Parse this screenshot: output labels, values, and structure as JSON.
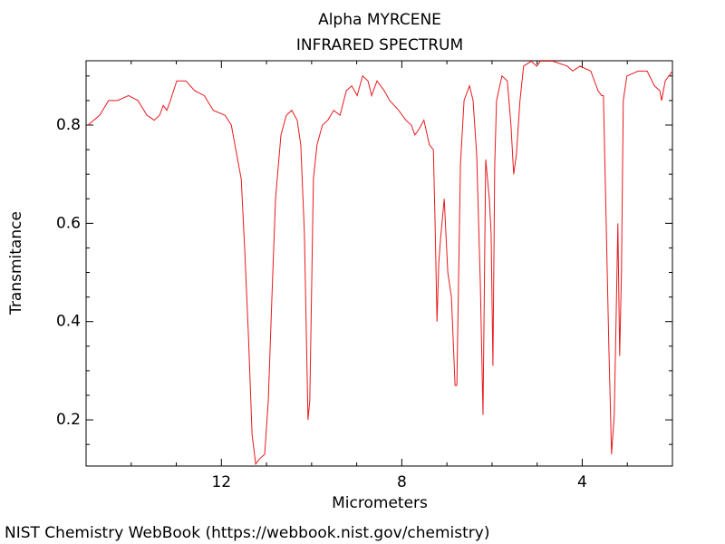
{
  "chart_data": {
    "type": "line",
    "title": "Alpha MYRCENE",
    "subtitle": "INFRARED SPECTRUM",
    "x_label": "Micrometers",
    "y_label": "Transmitance",
    "footer": "NIST Chemistry WebBook (https://webbook.nist.gov/chemistry)",
    "xlim": [
      15,
      2
    ],
    "ylim": [
      0.106,
      0.931
    ],
    "xticks": [
      12,
      8,
      4
    ],
    "yticks": [
      0.2,
      0.4,
      0.6,
      0.8
    ],
    "xminorticks": [
      14,
      13,
      11,
      10,
      9,
      7,
      6,
      5,
      3
    ],
    "yminorticks": [
      0.15,
      0.25,
      0.3,
      0.35,
      0.45,
      0.5,
      0.55,
      0.65,
      0.7,
      0.75,
      0.85,
      0.9
    ],
    "grid": false,
    "x": [
      14.96,
      14.7,
      14.5,
      14.3,
      14.06,
      13.85,
      13.65,
      13.49,
      13.37,
      13.29,
      13.21,
      13.13,
      12.99,
      12.79,
      12.59,
      12.38,
      12.18,
      11.92,
      11.78,
      11.64,
      11.56,
      11.48,
      11.4,
      11.32,
      11.24,
      11.16,
      11.04,
      10.96,
      10.88,
      10.8,
      10.68,
      10.56,
      10.44,
      10.32,
      10.24,
      10.16,
      10.08,
      10.04,
      9.96,
      9.88,
      9.76,
      9.64,
      9.51,
      9.37,
      9.23,
      9.11,
      8.99,
      8.87,
      8.75,
      8.67,
      8.55,
      8.39,
      8.27,
      8.07,
      7.91,
      7.79,
      7.71,
      7.63,
      7.51,
      7.39,
      7.3,
      7.26,
      7.22,
      7.18,
      7.14,
      7.06,
      6.98,
      6.9,
      6.82,
      6.78,
      6.7,
      6.62,
      6.5,
      6.42,
      6.34,
      6.26,
      6.2,
      6.14,
      6.06,
      6.02,
      5.98,
      5.94,
      5.9,
      5.78,
      5.66,
      5.58,
      5.52,
      5.46,
      5.38,
      5.3,
      5.13,
      5.01,
      4.93,
      4.65,
      4.33,
      4.21,
      4.05,
      3.81,
      3.65,
      3.57,
      3.53,
      3.49,
      3.41,
      3.35,
      3.29,
      3.25,
      3.21,
      3.17,
      3.13,
      3.09,
      3.01,
      2.76,
      2.56,
      2.4,
      2.28,
      2.24,
      2.16,
      2.0
    ],
    "series": [
      {
        "color": "#e8191c",
        "values": [
          0.8,
          0.82,
          0.85,
          0.85,
          0.86,
          0.85,
          0.82,
          0.81,
          0.82,
          0.84,
          0.83,
          0.85,
          0.89,
          0.89,
          0.87,
          0.86,
          0.83,
          0.82,
          0.8,
          0.73,
          0.69,
          0.54,
          0.37,
          0.17,
          0.11,
          0.12,
          0.13,
          0.24,
          0.45,
          0.65,
          0.78,
          0.82,
          0.83,
          0.81,
          0.76,
          0.58,
          0.2,
          0.24,
          0.69,
          0.76,
          0.8,
          0.81,
          0.83,
          0.82,
          0.87,
          0.88,
          0.86,
          0.9,
          0.89,
          0.86,
          0.89,
          0.87,
          0.85,
          0.83,
          0.81,
          0.8,
          0.78,
          0.79,
          0.81,
          0.76,
          0.75,
          0.59,
          0.4,
          0.52,
          0.57,
          0.65,
          0.5,
          0.45,
          0.27,
          0.27,
          0.72,
          0.85,
          0.88,
          0.85,
          0.74,
          0.48,
          0.21,
          0.73,
          0.65,
          0.58,
          0.31,
          0.72,
          0.85,
          0.9,
          0.89,
          0.8,
          0.7,
          0.74,
          0.85,
          0.92,
          0.93,
          0.92,
          0.93,
          0.93,
          0.92,
          0.91,
          0.92,
          0.91,
          0.87,
          0.86,
          0.86,
          0.69,
          0.35,
          0.13,
          0.21,
          0.4,
          0.6,
          0.33,
          0.5,
          0.85,
          0.9,
          0.91,
          0.91,
          0.88,
          0.87,
          0.85,
          0.89,
          0.91
        ]
      }
    ]
  }
}
